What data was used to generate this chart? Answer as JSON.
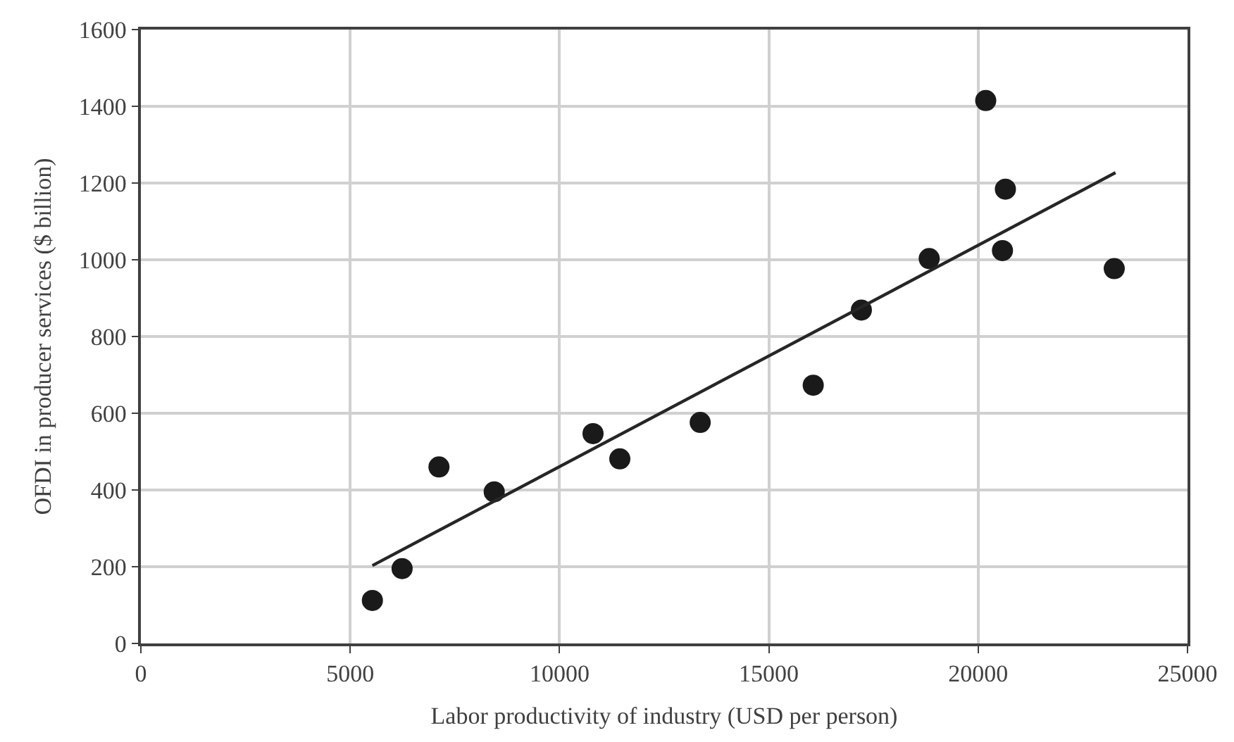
{
  "chart_data": {
    "type": "scatter",
    "xlabel": "Labor productivity of industry (USD per person)",
    "ylabel": "OFDI in producer services ($ billion)",
    "xlim": [
      0,
      25000
    ],
    "xticks": [
      0,
      5000,
      10000,
      15000,
      20000,
      25000
    ],
    "ylim": [
      0,
      1600
    ],
    "yticks": [
      0,
      200,
      400,
      600,
      800,
      1000,
      1200,
      1400,
      1600
    ],
    "grid": true,
    "marker": "circle",
    "series": [
      {
        "color": "#1a1a1a",
        "x": [
          5530,
          6240,
          7120,
          8440,
          10800,
          11440,
          13360,
          16060,
          17210,
          18830,
          20180,
          20650,
          20580,
          23250
        ],
        "values": [
          112,
          195,
          460,
          395,
          547,
          481,
          576,
          673,
          869,
          1003,
          1415,
          1184,
          1024,
          977
        ]
      },
      {
        "type": "line",
        "color": "#262626",
        "x": [
          5530,
          23280
        ],
        "values": [
          203,
          1227
        ],
        "line_style": "solid",
        "marker": "none"
      }
    ]
  }
}
